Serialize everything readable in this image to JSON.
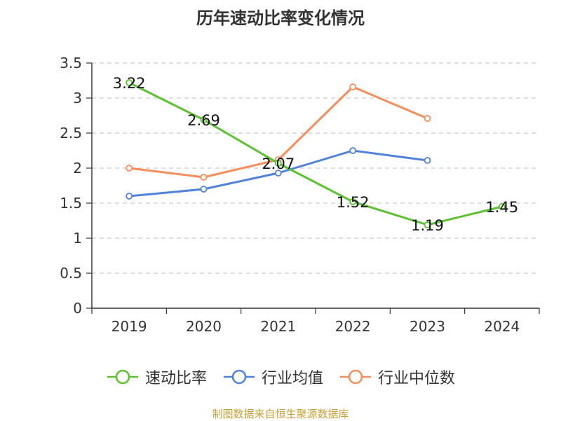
{
  "chart_data": {
    "type": "line",
    "title": "历年速动比率变化情况",
    "categories": [
      "2019",
      "2020",
      "2021",
      "2022",
      "2023",
      "2024"
    ],
    "ylim": [
      0,
      3.5
    ],
    "yticks": [
      "0",
      "0.5",
      "1",
      "1.5",
      "2",
      "2.5",
      "3",
      "3.5"
    ],
    "ytick_values": [
      0,
      0.5,
      1,
      1.5,
      2,
      2.5,
      3,
      3.5
    ],
    "grid": true,
    "legend_position": "bottom",
    "series": [
      {
        "name": "速动比率",
        "color": "#5cc22d",
        "values": [
          3.22,
          2.69,
          2.07,
          1.52,
          1.19,
          1.45
        ],
        "labels": [
          "3.22",
          "2.69",
          "2.07",
          "1.52",
          "1.19",
          "1.45"
        ],
        "show_labels": true
      },
      {
        "name": "行业均值",
        "color": "#4f82dc",
        "values": [
          1.6,
          1.7,
          1.93,
          2.25,
          2.11,
          null
        ],
        "show_labels": false
      },
      {
        "name": "行业中位数",
        "color": "#f78d5a",
        "values": [
          2.0,
          1.87,
          2.12,
          3.16,
          2.71,
          null
        ],
        "show_labels": false
      }
    ]
  },
  "source": "制图数据来自恒生聚源数据库"
}
